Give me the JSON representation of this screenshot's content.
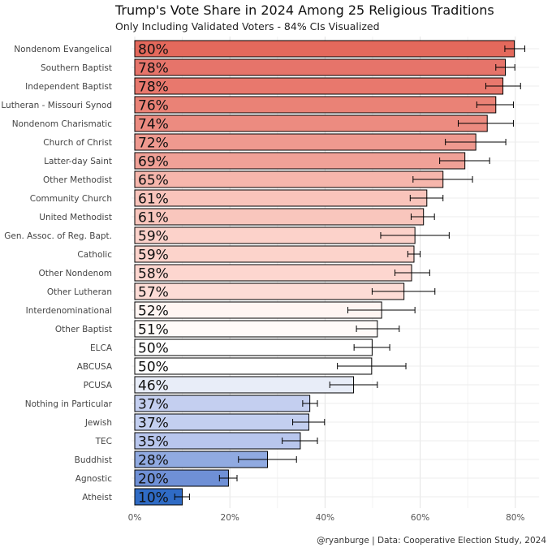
{
  "chart_data": {
    "type": "bar",
    "orientation": "horizontal",
    "title": "Trump's Vote Share in 2024 Among 25 Religious Traditions",
    "subtitle": "Only Including Validated Voters - 84% CIs Visualized",
    "caption": "@ryanburge | Data: Cooperative Election Study, 2024",
    "xlabel": "",
    "ylabel": "",
    "xlim": [
      0,
      85
    ],
    "xticks": [
      0,
      20,
      40,
      60,
      80
    ],
    "xtick_labels": [
      "0%",
      "20%",
      "40%",
      "60%",
      "80%"
    ],
    "grid": true,
    "categories": [
      "Nondenom Evangelical",
      "Southern Baptist",
      "Independent Baptist",
      "Lutheran - Missouri Synod",
      "Nondenom Charismatic",
      "Church of Christ",
      "Latter-day Saint",
      "Other Methodist",
      "Community Church",
      "United Methodist",
      "Gen. Assoc. of Reg. Bapt.",
      "Catholic",
      "Other Nondenom",
      "Other Lutheran",
      "Interdenominational",
      "Other Baptist",
      "ELCA",
      "ABCUSA",
      "PCUSA",
      "Nothing in Particular",
      "Jewish",
      "TEC",
      "Buddhist",
      "Agnostic",
      "Atheist"
    ],
    "values": [
      80,
      78,
      78,
      76,
      74,
      72,
      69,
      65,
      61,
      61,
      59,
      59,
      58,
      57,
      52,
      51,
      50,
      50,
      46,
      37,
      37,
      35,
      28,
      20,
      10
    ],
    "plot_values": [
      79.8,
      77.9,
      77.4,
      75.9,
      74.1,
      71.7,
      69.4,
      64.8,
      61.4,
      60.7,
      58.9,
      58.7,
      58.2,
      56.6,
      51.9,
      51.0,
      49.9,
      49.8,
      46.0,
      36.8,
      36.6,
      34.8,
      27.9,
      19.7,
      10.0
    ],
    "ci_low": [
      77.8,
      75.9,
      73.8,
      71.9,
      68.0,
      65.3,
      64.1,
      58.5,
      57.9,
      58.1,
      51.7,
      57.4,
      54.7,
      49.9,
      44.8,
      46.6,
      46.1,
      42.6,
      41.0,
      35.3,
      33.2,
      31.0,
      21.8,
      17.8,
      8.4
    ],
    "ci_high": [
      82.0,
      79.9,
      81.1,
      79.6,
      79.6,
      78.0,
      74.6,
      71.0,
      64.8,
      63.0,
      66.1,
      60.0,
      62.0,
      63.1,
      58.9,
      55.6,
      53.6,
      57.0,
      51.0,
      38.4,
      39.9,
      38.4,
      34.0,
      21.5,
      11.5
    ],
    "labels": [
      "80%",
      "78%",
      "78%",
      "76%",
      "74%",
      "72%",
      "69%",
      "65%",
      "61%",
      "61%",
      "59%",
      "59%",
      "58%",
      "57%",
      "52%",
      "51%",
      "50%",
      "50%",
      "46%",
      "37%",
      "37%",
      "35%",
      "28%",
      "20%",
      "10%"
    ],
    "fill_colors": [
      "#e4695c",
      "#e6746a",
      "#e8786d",
      "#ea8276",
      "#ec8b80",
      "#ef998f",
      "#f0a197",
      "#f6b6ac",
      "#f9c4bb",
      "#f9c6bd",
      "#fcd2ca",
      "#fcd3cb",
      "#fdd6cf",
      "#fddcd6",
      "#fff5f2",
      "#fffaf8",
      "#ffffff",
      "#ffffff",
      "#e8edf8",
      "#c4cff0",
      "#c3cff0",
      "#b8c6ed",
      "#90aae1",
      "#6f90d6",
      "#2f6bc5"
    ]
  }
}
